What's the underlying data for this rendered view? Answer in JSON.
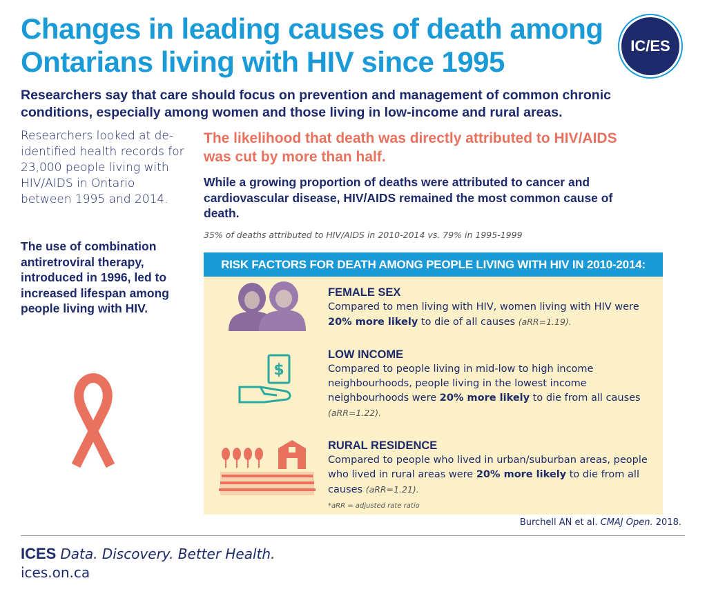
{
  "title": "Changes in leading causes of death among Ontarians living with HIV since 1995",
  "logo": "IC/ES",
  "subtitle": "Researchers say that care should focus on prevention and management of common chronic conditions, especially among women and those living in low-income and rural areas.",
  "intro": "Researchers looked at de-identified health records for 23,000 people living with HIV/AIDS in Ontario between 1995 and 2014.",
  "art_note": "The use of combination antiretroviral therapy, introduced in 1996, led to increased lifespan among people living with HIV.",
  "headline": "The likelihood that death was directly attributed to HIV/AIDS was cut by more than half.",
  "subhead": "While a growing proportion of deaths were attributed to cancer and cardiovascular disease, HIV/AIDS remained the most common cause of death.",
  "stat_note": "35% of deaths attributed to HIV/AIDS in 2010-2014 vs. 79% in 1995-1999",
  "risk": {
    "header": "RISK FACTORS FOR DEATH AMONG PEOPLE LIVING WITH HIV IN 2010-2014:",
    "factors": [
      {
        "icon": "women-icon",
        "title": "FEMALE SEX",
        "text_pre": "Compared to men living with HIV, women living with HIV were ",
        "emph": "20% more likely",
        "text_post": " to die of all causes ",
        "ratio": "(aRR=1.19)."
      },
      {
        "icon": "money-hand-icon",
        "title": "LOW INCOME",
        "text_pre": "Compared to people living in mid-low to high income neighbourhoods, people living in the lowest income neighbourhoods were ",
        "emph": "20% more likely",
        "text_post": " to die from all causes ",
        "ratio": "(aRR=1.22)."
      },
      {
        "icon": "farm-icon",
        "title": "RURAL RESIDENCE",
        "text_pre": "Compared to people who lived in urban/suburban areas, people who lived in rural areas were ",
        "emph": "20% more likely",
        "text_post": " to die from all causes ",
        "ratio": "(aRR=1.21)."
      }
    ],
    "footnote": "*aRR = adjusted rate ratio"
  },
  "citation": {
    "authors": "Burchell AN et al.",
    "journal": "CMAJ Open.",
    "year": "2018."
  },
  "footer": {
    "brand": "ICES",
    "tagline": "Data. Discovery. Better Health.",
    "url": "ices.on.ca"
  },
  "colors": {
    "blue": "#1a9ad6",
    "navy": "#1d2a6b",
    "coral": "#e8725d",
    "cream": "#fcf0c9",
    "purple": "#8b6a9e",
    "teal": "#2aa9a0"
  }
}
